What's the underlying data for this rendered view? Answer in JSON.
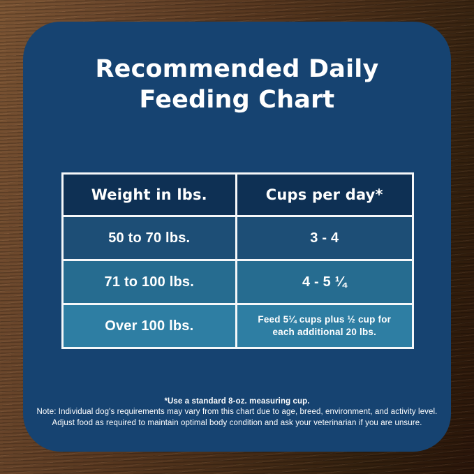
{
  "title": {
    "line1": "Recommended Daily",
    "line2": "Feeding Chart"
  },
  "chart_data": {
    "type": "table",
    "title": "Recommended Daily Feeding Chart",
    "columns": [
      "Weight in lbs.",
      "Cups per day*"
    ],
    "rows": [
      [
        "50 to 70 lbs.",
        "3 - 4"
      ],
      [
        "71 to 100 lbs.",
        "4 - 5 ¼"
      ],
      [
        "Over 100 lbs.",
        "Feed 5¼ cups plus ½ cup for each additional 20 lbs."
      ]
    ],
    "footnotes": [
      "*Use a standard 8-oz. measuring cup.",
      "Note: Individual dog's requirements may vary from this chart due to age, breed, environment, and activity level.",
      "Adjust food as required to maintain optimal body condition and ask your veterinarian if you are unsure."
    ]
  },
  "footnotes": {
    "measuring_cup": "*Use a standard 8-oz. measuring cup.",
    "note_line1": "Note: Individual dog's requirements may vary from this chart due to age, breed, environment, and activity level.",
    "note_line2": "Adjust food as required to maintain optimal body condition and ask your veterinarian if you are unsure."
  },
  "colors": {
    "card_bg": "#164371",
    "header_cell_bg": "#0e3054",
    "row1_bg": "#1d4e76",
    "row2_bg": "#266c90",
    "row3_bg": "#2e7ea3",
    "table_border": "#f5f7f9",
    "text": "#ffffff",
    "wood_light": "#7b5433",
    "wood_dark": "#2a1509"
  }
}
